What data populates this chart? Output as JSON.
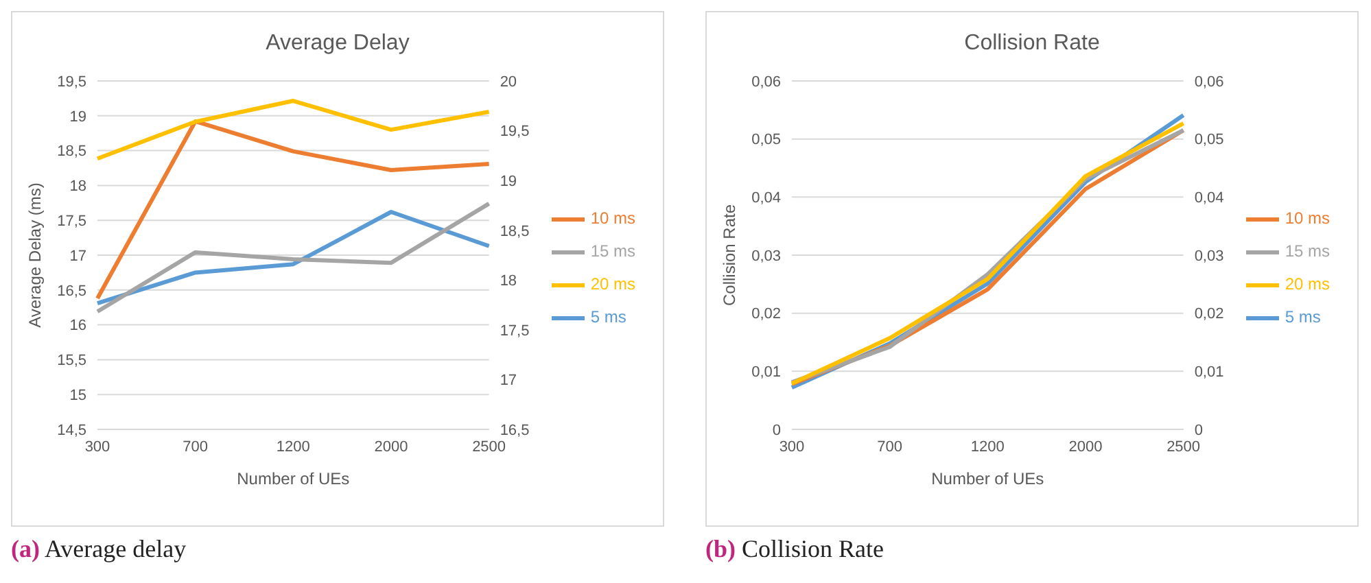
{
  "chart_data": [
    {
      "type": "line",
      "title": "Average Delay",
      "xlabel": "Number of UEs",
      "ylabel": "Average Delay (ms)",
      "categories": [
        "300",
        "700",
        "1200",
        "2000",
        "2500"
      ],
      "series": [
        {
          "name": "5 ms",
          "color": "#5b9bd5",
          "values": [
            16.31,
            16.75,
            16.87,
            17.62,
            17.13
          ]
        },
        {
          "name": "10 ms",
          "color": "#ed7d31",
          "values": [
            16.38,
            18.92,
            18.49,
            18.22,
            18.31
          ]
        },
        {
          "name": "15 ms",
          "color": "#a5a5a5",
          "values": [
            16.19,
            17.04,
            16.94,
            16.89,
            17.74
          ]
        },
        {
          "name": "20 ms",
          "color": "#ffc000",
          "axis": "y2",
          "values": [
            19.22,
            19.59,
            19.8,
            19.51,
            19.69
          ]
        }
      ],
      "ylim": [
        14.5,
        19.5
      ],
      "yticks": [
        {
          "value": 14.5,
          "label": "14,5"
        },
        15,
        {
          "value": 15.5,
          "label": "15,5"
        },
        16,
        {
          "value": 16.5,
          "label": "16,5"
        },
        17,
        {
          "value": 17.5,
          "label": "17,5"
        },
        18,
        {
          "value": 18.5,
          "label": "18,5"
        },
        19,
        {
          "value": 19.5,
          "label": "19,5"
        }
      ],
      "y2lim": [
        16.5,
        20
      ],
      "y2ticks": [
        {
          "value": 16.5,
          "label": "16,5"
        },
        17,
        {
          "value": 17.5,
          "label": "17,5"
        },
        18,
        {
          "value": 18.5,
          "label": "18,5"
        },
        19,
        {
          "value": 19.5,
          "label": "19,5"
        },
        20
      ],
      "grid": "y",
      "legend": "right",
      "marker": "none",
      "line_style": "solid",
      "annotations": [
        "(a) Average delay"
      ]
    },
    {
      "type": "line",
      "title": "Collision Rate",
      "xlabel": "Number of UEs",
      "ylabel": "Collision Rate",
      "categories": [
        "300",
        "700",
        "1200",
        "2000",
        "2500"
      ],
      "series": [
        {
          "name": "5 ms",
          "color": "#5b9bd5",
          "values": [
            0.0072,
            0.0148,
            0.0251,
            0.0426,
            0.0541
          ]
        },
        {
          "name": "10 ms",
          "color": "#ed7d31",
          "values": [
            0.0078,
            0.0144,
            0.0241,
            0.0414,
            0.0515
          ]
        },
        {
          "name": "15 ms",
          "color": "#a5a5a5",
          "values": [
            0.0081,
            0.0142,
            0.0267,
            0.0431,
            0.0515
          ]
        },
        {
          "name": "20 ms",
          "color": "#ffc000",
          "values": [
            0.0079,
            0.0157,
            0.0259,
            0.0436,
            0.0527
          ]
        }
      ],
      "ylim": [
        0,
        0.06
      ],
      "yticks": [
        0,
        {
          "value": 0.01,
          "label": "0,01"
        },
        {
          "value": 0.02,
          "label": "0,02"
        },
        {
          "value": 0.03,
          "label": "0,03"
        },
        {
          "value": 0.04,
          "label": "0,04"
        },
        {
          "value": 0.05,
          "label": "0,05"
        },
        {
          "value": 0.06,
          "label": "0,06"
        }
      ],
      "y2lim": [
        0,
        0.06
      ],
      "y2ticks": [
        0,
        {
          "value": 0.01,
          "label": "0,01"
        },
        {
          "value": 0.02,
          "label": "0,02"
        },
        {
          "value": 0.03,
          "label": "0,03"
        },
        {
          "value": 0.04,
          "label": "0,04"
        },
        {
          "value": 0.05,
          "label": "0,05"
        },
        {
          "value": 0.06,
          "label": "0,06"
        }
      ],
      "grid": "y",
      "legend": "right",
      "marker": "none",
      "line_style": "solid",
      "annotations": [
        "(b) Collision Rate"
      ]
    }
  ]
}
